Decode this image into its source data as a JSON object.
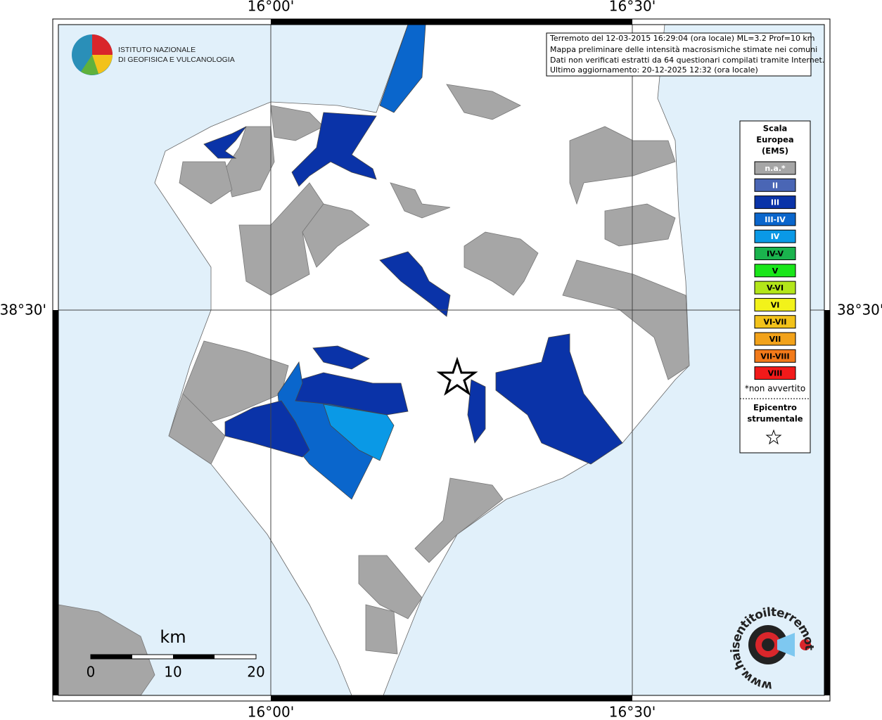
{
  "map": {
    "lon_labels": [
      "16°00'",
      "16°30'"
    ],
    "lat_labels": [
      "38°30'"
    ],
    "logo": [
      "ISTITUTO NAZIONALE",
      "DI GEOFISICA E VULCANOLOGIA"
    ],
    "info_box": [
      "Terremoto del 12-03-2015 16:29:04 (ora locale) ML=3.2 Prof=10 km",
      "Mappa preliminare delle intensità macrosismiche stimate nei comuni",
      "Dati non verificati estratti da 64 questionari compilati tramite Internet.",
      "Ultimo aggiornamento: 20-12-2025 12:32 (ora locale)"
    ],
    "legend": {
      "title": [
        "Scala",
        "Europea",
        "(EMS)"
      ],
      "items": [
        {
          "label": "n.a.*",
          "color": "#a6a6a6"
        },
        {
          "label": "II",
          "color": "#4a66b5"
        },
        {
          "label": "III",
          "color": "#0a33a8"
        },
        {
          "label": "III-IV",
          "color": "#0a66cc"
        },
        {
          "label": "IV",
          "color": "#0a99e6"
        },
        {
          "label": "IV-V",
          "color": "#1ab34d"
        },
        {
          "label": "V",
          "color": "#1ae61a"
        },
        {
          "label": "V-VI",
          "color": "#b3e61a"
        },
        {
          "label": "VI",
          "color": "#f2f21a"
        },
        {
          "label": "VI-VII",
          "color": "#f2c21a"
        },
        {
          "label": "VII",
          "color": "#f2a21a"
        },
        {
          "label": "VII-VIII",
          "color": "#f27a1a"
        },
        {
          "label": "VIII",
          "color": "#f21a1a"
        }
      ],
      "note": "*non avvertito",
      "epicentre": [
        "Epicentro",
        "strumentale"
      ]
    },
    "scale_bar": {
      "unit": "km",
      "ticks": [
        "0",
        "10",
        "20"
      ]
    },
    "site": "www.haisentitoilterremoto.it"
  }
}
